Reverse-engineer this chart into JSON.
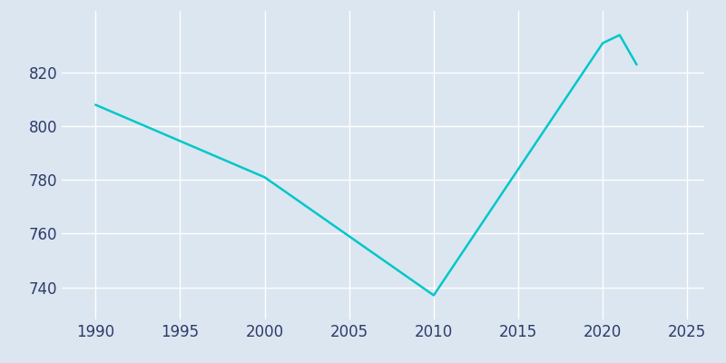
{
  "years": [
    1990,
    2000,
    2010,
    2020,
    2021,
    2022
  ],
  "population": [
    808,
    781,
    737,
    831,
    834,
    823
  ],
  "line_color": "#00C8C8",
  "background_color": "#dce6f0",
  "grid_color": "#ffffff",
  "tick_label_color": "#2d3b6b",
  "xlim": [
    1988,
    2026
  ],
  "ylim": [
    728,
    843
  ],
  "yticks": [
    740,
    760,
    780,
    800,
    820
  ],
  "xticks": [
    1990,
    1995,
    2000,
    2005,
    2010,
    2015,
    2020,
    2025
  ],
  "linewidth": 1.8,
  "tick_fontsize": 12
}
